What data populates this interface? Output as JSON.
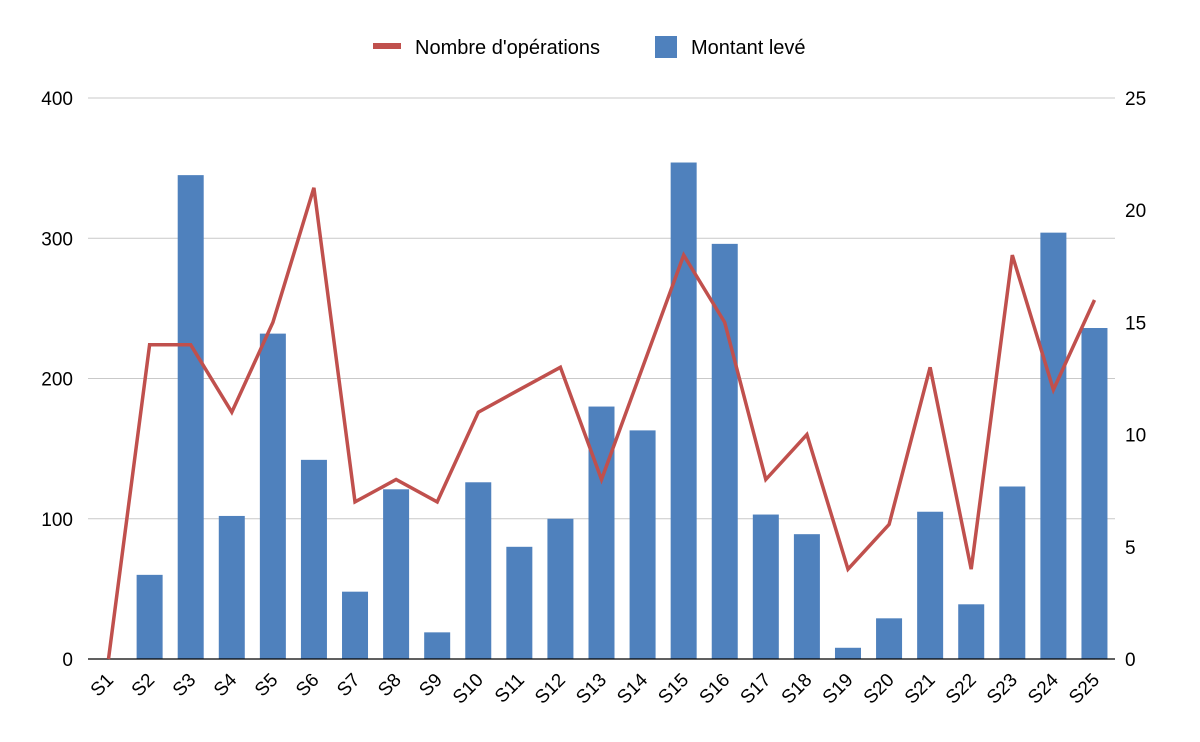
{
  "chart_data": {
    "type": "bar",
    "categories": [
      "S1",
      "S2",
      "S3",
      "S4",
      "S5",
      "S6",
      "S7",
      "S8",
      "S9",
      "S10",
      "S11",
      "S12",
      "S13",
      "S14",
      "S15",
      "S16",
      "S17",
      "S18",
      "S19",
      "S20",
      "S21",
      "S22",
      "S23",
      "S24",
      "S25"
    ],
    "series": [
      {
        "name": "Montant levé",
        "type": "bar",
        "axis": "left",
        "color": "#4F81BD",
        "values": [
          0,
          60,
          345,
          102,
          232,
          142,
          48,
          121,
          19,
          126,
          80,
          100,
          180,
          163,
          354,
          296,
          103,
          89,
          8,
          29,
          105,
          39,
          123,
          304,
          236
        ]
      },
      {
        "name": "Nombre d'opérations",
        "type": "line",
        "axis": "right",
        "color": "#C0504D",
        "values": [
          0,
          14,
          14,
          11,
          15,
          21,
          7,
          8,
          7,
          11,
          12,
          13,
          8,
          13,
          18,
          15,
          8,
          10,
          4,
          6,
          13,
          4,
          18,
          12,
          16
        ]
      }
    ],
    "y_left": {
      "ylim": [
        0,
        400
      ],
      "ticks": [
        "0",
        "100",
        "200",
        "300",
        "400"
      ]
    },
    "y_right": {
      "ylim": [
        0,
        25
      ],
      "ticks": [
        "0",
        "5",
        "10",
        "15",
        "20",
        "25"
      ]
    },
    "legend": {
      "position": "top-center"
    },
    "grid": true
  }
}
